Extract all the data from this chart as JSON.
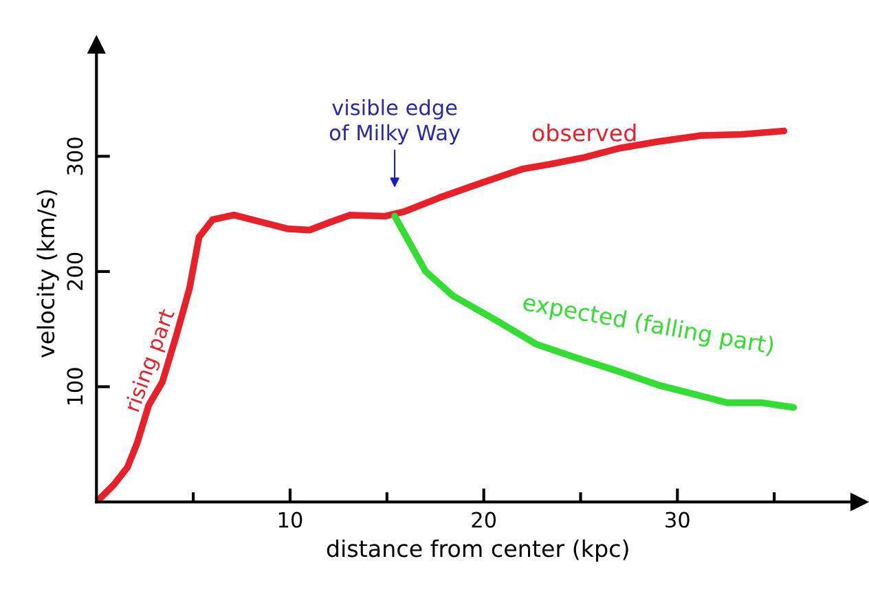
{
  "chart_data": {
    "type": "line",
    "xlabel": "distance from center (kpc)",
    "ylabel": "velocity (km/s)",
    "xlim": [
      0,
      39.4
    ],
    "ylim": [
      0,
      397
    ],
    "xticks": [
      {
        "value": 5,
        "label": null
      },
      10,
      {
        "value": 15,
        "label": null
      },
      20,
      {
        "value": 25,
        "label": null
      },
      30,
      {
        "value": 35,
        "label": null
      }
    ],
    "yticks": [
      100,
      200,
      300
    ],
    "grid": false,
    "legend": false,
    "marker": "none",
    "line_style": "solid",
    "series": [
      {
        "name": "observed",
        "color": "#e8202a",
        "x": [
          0,
          0.9,
          1.6,
          2.1,
          2.7,
          3.4,
          4.1,
          4.8,
          5.3,
          6.0,
          7.1,
          8.5,
          9.9,
          11.0,
          12.1,
          13.1,
          14.9,
          15.9,
          17.7,
          19.9,
          22.0,
          23.4,
          25.2,
          27.0,
          29.1,
          31.2,
          33.3,
          35.5
        ],
        "values": [
          0,
          15,
          30,
          51,
          84,
          104,
          143,
          185,
          230,
          245,
          249,
          243,
          237,
          236,
          243,
          249,
          248,
          252,
          264,
          277,
          289,
          293,
          299,
          307,
          313,
          318,
          319,
          322
        ]
      },
      {
        "name": "expected (falling part)",
        "color": "#33dd33",
        "x": [
          15.4,
          16.0,
          17.0,
          18.4,
          20.6,
          22.7,
          24.8,
          27.0,
          29.1,
          31.2,
          32.6,
          34.4,
          36.0
        ],
        "values": [
          248,
          230,
          200,
          179,
          158,
          137,
          125,
          113,
          101,
          92,
          86,
          86,
          82
        ]
      }
    ],
    "annotations": [
      "visible edge\nof Milky Way",
      "rising part"
    ]
  }
}
